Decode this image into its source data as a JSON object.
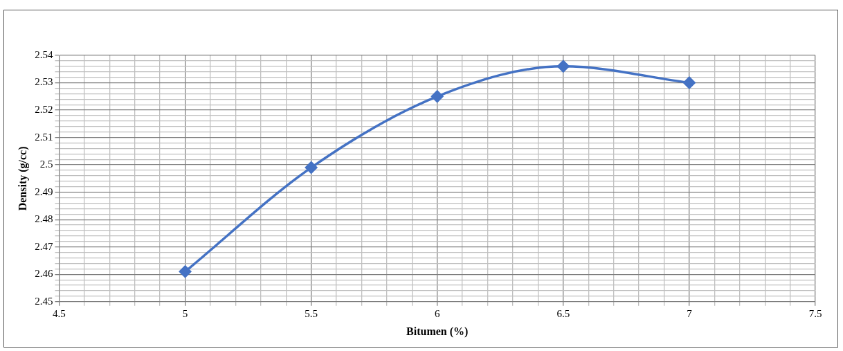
{
  "chart_data": {
    "type": "line",
    "xlabel": "Bitumen (%)",
    "ylabel": "Density (g/cc)",
    "x": [
      5,
      5.5,
      6,
      6.5,
      7
    ],
    "series": [
      {
        "color": "#4472c4",
        "values": [
          2.461,
          2.499,
          2.525,
          2.536,
          2.53
        ]
      }
    ],
    "xlim": [
      4.5,
      7.5
    ],
    "xticks": [
      4.5,
      {
        "value": 4.6,
        "label": null
      },
      {
        "value": 4.7,
        "label": null
      },
      {
        "value": 4.8,
        "label": null
      },
      {
        "value": 4.9,
        "label": null
      },
      5,
      {
        "value": 5.1,
        "label": null
      },
      {
        "value": 5.2,
        "label": null
      },
      {
        "value": 5.3,
        "label": null
      },
      {
        "value": 5.4,
        "label": null
      },
      5.5,
      {
        "value": 5.6,
        "label": null
      },
      {
        "value": 5.7,
        "label": null
      },
      {
        "value": 5.8,
        "label": null
      },
      {
        "value": 5.9,
        "label": null
      },
      6,
      {
        "value": 6.1,
        "label": null
      },
      {
        "value": 6.2,
        "label": null
      },
      {
        "value": 6.3,
        "label": null
      },
      {
        "value": 6.4,
        "label": null
      },
      6.5,
      {
        "value": 6.6,
        "label": null
      },
      {
        "value": 6.7,
        "label": null
      },
      {
        "value": 6.8,
        "label": null
      },
      {
        "value": 6.9,
        "label": null
      },
      7,
      {
        "value": 7.1,
        "label": null
      },
      {
        "value": 7.2,
        "label": null
      },
      {
        "value": 7.3,
        "label": null
      },
      {
        "value": 7.4,
        "label": null
      },
      7.5
    ],
    "ylim": [
      2.45,
      2.54
    ],
    "yticks": [
      2.45,
      {
        "value": 2.452,
        "label": null
      },
      {
        "value": 2.454,
        "label": null
      },
      {
        "value": 2.456,
        "label": null
      },
      {
        "value": 2.458,
        "label": null
      },
      2.46,
      {
        "value": 2.462,
        "label": null
      },
      {
        "value": 2.464,
        "label": null
      },
      {
        "value": 2.466,
        "label": null
      },
      {
        "value": 2.468,
        "label": null
      },
      2.47,
      {
        "value": 2.472,
        "label": null
      },
      {
        "value": 2.474,
        "label": null
      },
      {
        "value": 2.476,
        "label": null
      },
      {
        "value": 2.478,
        "label": null
      },
      2.48,
      {
        "value": 2.482,
        "label": null
      },
      {
        "value": 2.484,
        "label": null
      },
      {
        "value": 2.486,
        "label": null
      },
      {
        "value": 2.488,
        "label": null
      },
      2.49,
      {
        "value": 2.492,
        "label": null
      },
      {
        "value": 2.494,
        "label": null
      },
      {
        "value": 2.496,
        "label": null
      },
      {
        "value": 2.498,
        "label": null
      },
      2.5,
      {
        "value": 2.502,
        "label": null
      },
      {
        "value": 2.504,
        "label": null
      },
      {
        "value": 2.506,
        "label": null
      },
      {
        "value": 2.508,
        "label": null
      },
      2.51,
      {
        "value": 2.512,
        "label": null
      },
      {
        "value": 2.514,
        "label": null
      },
      {
        "value": 2.516,
        "label": null
      },
      {
        "value": 2.518,
        "label": null
      },
      2.52,
      {
        "value": 2.522,
        "label": null
      },
      {
        "value": 2.524,
        "label": null
      },
      {
        "value": 2.526,
        "label": null
      },
      {
        "value": 2.528,
        "label": null
      },
      2.53,
      {
        "value": 2.532,
        "label": null
      },
      {
        "value": 2.534,
        "label": null
      },
      {
        "value": 2.536,
        "label": null
      },
      {
        "value": 2.538,
        "label": null
      },
      2.54
    ],
    "grid": true,
    "legend": false,
    "marker": "diamond",
    "line_style": "solid"
  }
}
